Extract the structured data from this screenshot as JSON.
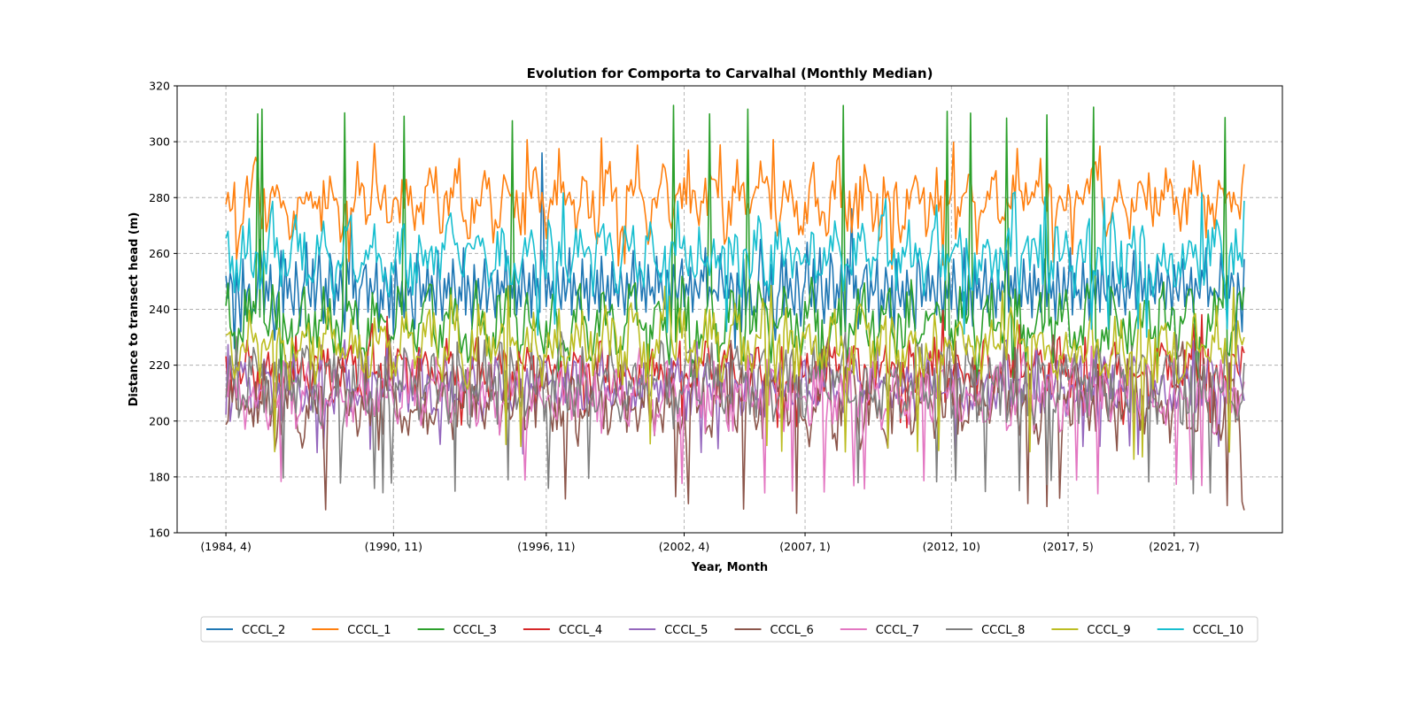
{
  "chart_data": {
    "type": "line",
    "title": "Evolution for Comporta to Carvalhal (Monthly Median)",
    "xlabel": "Year, Month",
    "ylabel": "Distance to transect head (m)",
    "ylim": [
      160,
      320
    ],
    "yticks": [
      160,
      180,
      200,
      220,
      240,
      260,
      280,
      300,
      320
    ],
    "xlim": [
      "1982-05",
      "2025-10"
    ],
    "xticks": [
      {
        "label": "(1984, 4)",
        "date": "1984-04"
      },
      {
        "label": "(1990, 11)",
        "date": "1990-11"
      },
      {
        "label": "(1996, 11)",
        "date": "1996-11"
      },
      {
        "label": "(2002, 4)",
        "date": "2002-04"
      },
      {
        "label": "(2007, 1)",
        "date": "2007-01"
      },
      {
        "label": "(2012, 10)",
        "date": "2012-10"
      },
      {
        "label": "(2017, 5)",
        "date": "2017-05"
      },
      {
        "label": "(2021, 7)",
        "date": "2021-07"
      }
    ],
    "x_start": "1984-04",
    "x_end": "2024-04",
    "grid": true,
    "legend_position": "bottom-center",
    "series": [
      {
        "name": "CCCL_2",
        "color": "#1f77b4",
        "values": [
          252,
          244,
          253,
          249,
          226,
          253,
          245,
          232,
          258,
          238,
          246,
          249,
          238,
          240,
          239,
          250,
          265,
          255,
          238,
          250,
          243,
          256,
          238,
          229,
          244,
          247,
          261,
          238,
          258,
          244,
          251,
          243,
          238,
          257,
          247,
          234,
          246,
          250,
          264,
          246,
          241,
          258,
          239,
          249,
          262,
          245,
          235,
          251,
          240,
          260,
          255,
          238,
          249,
          243,
          256,
          245,
          232,
          258,
          249,
          276,
          244,
          252,
          233,
          247,
          249,
          254,
          256,
          239,
          251,
          245,
          247,
          258,
          232,
          247,
          240,
          255,
          249,
          237,
          252,
          231,
          258,
          246,
          241,
          250,
          237,
          254,
          245,
          248,
          238,
          233,
          260,
          255,
          241,
          249,
          243,
          257,
          243,
          252,
          246,
          238,
          261,
          247,
          236,
          251,
          244,
          253,
          240,
          258,
          247,
          236,
          248,
          243,
          262,
          238,
          252,
          246,
          234,
          256,
          244,
          251,
          240,
          248,
          258,
          239,
          247,
          253,
          245,
          237,
          254,
          243,
          250,
          246,
          261,
          239,
          252,
          244,
          255,
          238,
          249,
          241,
          258,
          247,
          242,
          253,
          237,
          256,
          245,
          251,
          239,
          247,
          258,
          241,
          253,
          244,
          250,
          236,
          257,
          246,
          240,
          255,
          243,
          249,
          262,
          238,
          253,
          245,
          247,
          240,
          258,
          244,
          251,
          236,
          256,
          248,
          242,
          254,
          239,
          259,
          246,
          243,
          252,
          238,
          257,
          245,
          249,
          241,
          255,
          247,
          238,
          253,
          244,
          250,
          261,
          240,
          248,
          257,
          243,
          251,
          239,
          256,
          245,
          248,
          242,
          259,
          246,
          253,
          244,
          240,
          254,
          249,
          238,
          256,
          247,
          243,
          252,
          258,
          241,
          249,
          245,
          255,
          239,
          251,
          247,
          244,
          254,
          250,
          262,
          241,
          248,
          245,
          247,
          246,
          243,
          260,
          251,
          244
        ],
        "note": "first 240 of 480 monthly points; pattern repeats"
      },
      {
        "name": "CCCL_1",
        "color": "#ff7f0e",
        "values": []
      },
      {
        "name": "CCCL_3",
        "color": "#2ca02c",
        "values": []
      },
      {
        "name": "CCCL_4",
        "color": "#d62728",
        "values": []
      },
      {
        "name": "CCCL_5",
        "color": "#9467bd",
        "values": []
      },
      {
        "name": "CCCL_6",
        "color": "#8c564b",
        "values": []
      },
      {
        "name": "CCCL_7",
        "color": "#e377c2",
        "values": []
      },
      {
        "name": "CCCL_8",
        "color": "#7f7f7f",
        "values": []
      },
      {
        "name": "CCCL_9",
        "color": "#bcbd22",
        "values": []
      },
      {
        "name": "CCCL_10",
        "color": "#17becf",
        "values": []
      }
    ],
    "series_profiles": {
      "CCCL_2": {
        "mean": 247,
        "amp": 9,
        "min": 226,
        "max": 296
      },
      "CCCL_1": {
        "mean": 279,
        "amp": 9,
        "min": 254,
        "max": 303
      },
      "CCCL_3": {
        "mean": 236,
        "amp": 9,
        "min": 212,
        "max": 313
      },
      "CCCL_4": {
        "mean": 218,
        "amp": 7,
        "min": 197,
        "max": 240
      },
      "CCCL_5": {
        "mean": 212,
        "amp": 7,
        "min": 187,
        "max": 230
      },
      "CCCL_6": {
        "mean": 207,
        "amp": 10,
        "min": 167,
        "max": 231
      },
      "CCCL_7": {
        "mean": 209,
        "amp": 8,
        "min": 174,
        "max": 227
      },
      "CCCL_8": {
        "mean": 213,
        "amp": 9,
        "min": 174,
        "max": 232
      },
      "CCCL_9": {
        "mean": 227,
        "amp": 9,
        "min": 186,
        "max": 249
      },
      "CCCL_10": {
        "mean": 259,
        "amp": 9,
        "min": 229,
        "max": 283
      }
    }
  }
}
